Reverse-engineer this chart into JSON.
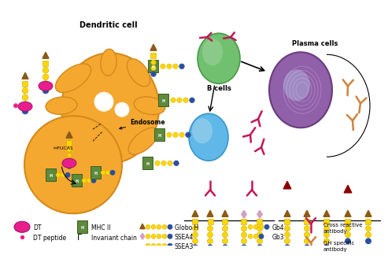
{
  "bg_color": "#ffffff",
  "orange": "#F5A830",
  "orange_dark": "#D4891A",
  "green_cell": "#70C070",
  "green_cell_dark": "#4A9A4A",
  "blue_cell": "#60B8E8",
  "blue_cell_dark": "#3A96CC",
  "purple_cell": "#9060A8",
  "purple_cell_dark": "#6A3C80",
  "mhc_green": "#5D8A3C",
  "mhc_dark": "#3D6020",
  "dt_pink": "#E91E8C",
  "yellow": "#FFD700",
  "yellow_dark": "#C8A800",
  "blue_bead": "#2A4FA0",
  "dark_brown_tri": "#8B5A14",
  "pink_diamond": "#D4A0C0",
  "antibody_pink": "#C2185B",
  "antibody_tan": "#CD853F",
  "red_tri": "#8B0000",
  "text_color": "#111111",
  "dendritic_label": "Dendritic cell",
  "b_cells_label": "B cells",
  "plasma_label": "Plasma cells",
  "endosome_label": "Endosome",
  "fuca1_label": "FUCA1",
  "legend_items": [
    "DT",
    "DT peptide",
    "MHC II",
    "Invariant chain",
    "Globo H",
    "SSEA4",
    "SSEA3",
    "Gb4",
    "Gb3",
    "Cross reactive\nantibody",
    "GH specific\nantibody"
  ]
}
